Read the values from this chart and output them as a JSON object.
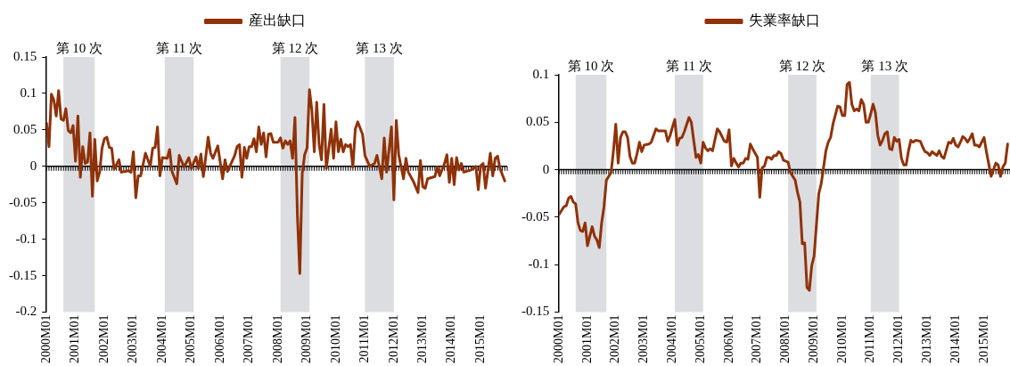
{
  "chart_data": [
    {
      "type": "line",
      "legend": "top",
      "marker": "none",
      "grid": false,
      "series": [
        {
          "name": "産出缺口",
          "color": "#8f3208",
          "x": [
            "2000-01",
            "2000-02",
            "2000-03",
            "2000-04",
            "2000-05",
            "2000-06",
            "2000-07",
            "2000-08",
            "2000-09",
            "2000-10",
            "2000-11",
            "2000-12",
            "2001-01",
            "2001-02",
            "2001-03",
            "2001-04",
            "2001-05",
            "2001-06",
            "2001-07",
            "2001-08",
            "2001-09",
            "2001-10",
            "2001-11",
            "2001-12",
            "2002-01",
            "2002-02",
            "2002-03",
            "2002-04",
            "2002-05",
            "2002-07",
            "2002-08",
            "2002-11",
            "2002-12",
            "2003-01",
            "2003-02",
            "2003-03",
            "2003-04",
            "2003-06",
            "2003-08",
            "2003-09",
            "2003-10",
            "2003-11",
            "2003-12",
            "2004-01",
            "2004-03",
            "2004-04",
            "2004-05",
            "2004-07",
            "2004-08",
            "2004-10",
            "2004-12",
            "2005-01",
            "2005-03",
            "2005-04",
            "2005-05",
            "2005-06",
            "2005-08",
            "2005-09",
            "2005-10",
            "2005-12",
            "2006-02",
            "2006-03",
            "2006-04",
            "2006-07",
            "2006-08",
            "2006-09",
            "2006-10",
            "2006-11",
            "2006-12",
            "2007-01",
            "2007-02",
            "2007-03",
            "2007-04",
            "2007-05",
            "2007-06",
            "2007-07",
            "2007-08",
            "2007-09",
            "2007-10",
            "2007-11",
            "2008-01",
            "2008-02",
            "2008-03",
            "2008-04",
            "2008-05",
            "2008-06",
            "2008-07",
            "2008-08",
            "2008-09",
            "2008-10",
            "2008-11",
            "2008-12",
            "2009-01",
            "2009-02",
            "2009-03",
            "2009-04",
            "2009-05",
            "2009-06",
            "2009-07",
            "2009-08",
            "2009-09",
            "2009-11",
            "2009-12",
            "2010-01",
            "2010-02",
            "2010-03",
            "2010-04",
            "2010-05",
            "2010-06",
            "2010-07",
            "2010-08",
            "2010-09",
            "2010-10",
            "2010-12",
            "2011-01",
            "2011-03",
            "2011-05",
            "2011-06",
            "2011-08",
            "2011-09",
            "2011-10",
            "2011-12",
            "2012-01",
            "2012-02",
            "2012-03",
            "2012-05",
            "2012-06",
            "2012-07",
            "2012-09",
            "2012-11",
            "2012-12",
            "2013-01",
            "2013-02",
            "2013-03",
            "2013-06",
            "2013-07",
            "2013-08",
            "2013-10",
            "2013-11",
            "2013-12",
            "2014-01",
            "2014-02",
            "2014-03",
            "2014-04",
            "2014-05",
            "2014-06",
            "2014-09",
            "2014-11",
            "2014-12",
            "2015-01",
            "2015-02",
            "2015-03",
            "2015-05",
            "2015-06",
            "2015-07",
            "2015-08",
            "2015-09",
            "2015-11"
          ],
          "values": [
            0.059,
            0.027,
            0.099,
            0.091,
            0.069,
            0.104,
            0.065,
            0.063,
            0.079,
            0.049,
            0.046,
            0.056,
            0.007,
            0.069,
            -0.015,
            0.027,
            0.004,
            0.006,
            0.046,
            -0.041,
            0.037,
            -0.02,
            -0.008,
            0.025,
            0.038,
            0.04,
            0.026,
            0.025,
            -0.004,
            0.009,
            -0.008,
            -0.006,
            -0.008,
            0.02,
            -0.043,
            -0.013,
            -0.013,
            0.018,
            0,
            0.025,
            0.026,
            0.054,
            -0.013,
            0.012,
            0.011,
            0.023,
            -0.007,
            -0.024,
            0.015,
            -0.001,
            0.012,
            -0.003,
            0.013,
            -0.003,
            0.017,
            -0.014,
            0.04,
            0.018,
            0.011,
            0.028,
            -0.017,
            0.009,
            -0.007,
            0.015,
            0.027,
            0.03,
            -0.015,
            0.026,
            0.011,
            0.027,
            0.027,
            0.038,
            0.02,
            0.054,
            0.03,
            0.046,
            0.013,
            0.044,
            0.045,
            0.033,
            0.033,
            0.039,
            0.025,
            0.035,
            0.03,
            0.035,
            0.011,
            0.067,
            -0.067,
            -0.147,
            -0.01,
            0.016,
            0.025,
            0.105,
            0.077,
            0.02,
            0.088,
            0.03,
            0.009,
            0.085,
            -0.003,
            0.051,
            0.011,
            0.061,
            0.02,
            0.037,
            0.02,
            0.03,
            0.027,
            0.03,
            -0.001,
            0.051,
            0.061,
            0.044,
            0.015,
            0,
            0.004,
            0.015,
            -0.017,
            0.039,
            -0.008,
            0.054,
            -0.046,
            0.063,
            0.016,
            -0.017,
            0.011,
            -0.008,
            -0.02,
            -0.036,
            0.008,
            -0.028,
            -0.03,
            -0.017,
            -0.014,
            -0.001,
            -0.013,
            0.004,
            0.016,
            -0.022,
            0.011,
            -0.025,
            0.012,
            -0.005,
            0.004,
            -0.008,
            -0.005,
            0,
            -0.032,
            0.001,
            0.004,
            -0.03,
            0.018,
            -0.013,
            0.011,
            0.014,
            -0.003,
            -0.02
          ]
        }
      ],
      "xlim": [
        "2000-01",
        "2015-12"
      ],
      "xticks": [
        {
          "value": "2000-01",
          "label": "2000M01"
        },
        {
          "value": "2001-01",
          "label": "2001M01"
        },
        {
          "value": "2002-01",
          "label": "2002M01"
        },
        {
          "value": "2003-01",
          "label": "2003M01"
        },
        {
          "value": "2004-01",
          "label": "2004M01"
        },
        {
          "value": "2005-01",
          "label": "2005M01"
        },
        {
          "value": "2006-01",
          "label": "2006M01"
        },
        {
          "value": "2007-01",
          "label": "2007M01"
        },
        {
          "value": "2008-01",
          "label": "2008M01"
        },
        {
          "value": "2009-01",
          "label": "2009M01"
        },
        {
          "value": "2010-01",
          "label": "2010M01"
        },
        {
          "value": "2011-01",
          "label": "2011M01"
        },
        {
          "value": "2012-01",
          "label": "2012M01"
        },
        {
          "value": "2013-01",
          "label": "2013M01"
        },
        {
          "value": "2014-01",
          "label": "2014M01"
        },
        {
          "value": "2015-01",
          "label": "2015M01"
        }
      ],
      "ylim": [
        -0.2,
        0.15
      ],
      "yticks": [
        -0.2,
        -0.15,
        -0.1,
        -0.05,
        0,
        0.05,
        0.1,
        0.15
      ],
      "bands": [
        {
          "axis": "x",
          "from": "2000-08",
          "to": "2001-09",
          "label": "第 10 次",
          "color": "#dcdde0"
        },
        {
          "axis": "x",
          "from": "2004-02",
          "to": "2005-02",
          "label": "第 11 次",
          "color": "#dcdde0"
        },
        {
          "axis": "x",
          "from": "2008-02",
          "to": "2009-02",
          "label": "第 12 次",
          "color": "#dcdde0"
        },
        {
          "axis": "x",
          "from": "2011-01",
          "to": "2012-01",
          "label": "第 13 次",
          "color": "#dcdde0"
        }
      ],
      "ref_lines": [
        {
          "axis": "y",
          "value": 0,
          "color": "#000000"
        }
      ]
    },
    {
      "type": "line",
      "legend": "top",
      "marker": "none",
      "grid": false,
      "series": [
        {
          "name": "失業率缺口",
          "color": "#8f3208",
          "x": [
            "2000-01",
            "2000-02",
            "2000-03",
            "2000-04",
            "2000-05",
            "2000-06",
            "2000-07",
            "2000-08",
            "2000-09",
            "2000-10",
            "2000-11",
            "2000-12",
            "2001-01",
            "2001-03",
            "2001-04",
            "2001-05",
            "2001-06",
            "2001-07",
            "2001-08",
            "2001-09",
            "2001-11",
            "2001-12",
            "2002-01",
            "2002-02",
            "2002-03",
            "2002-04",
            "2002-05",
            "2002-06",
            "2002-07",
            "2002-08",
            "2002-09",
            "2002-10",
            "2002-11",
            "2002-12",
            "2003-01",
            "2003-03",
            "2003-04",
            "2003-05",
            "2003-06",
            "2003-07",
            "2003-08",
            "2003-10",
            "2003-11",
            "2003-12",
            "2004-01",
            "2004-02",
            "2004-03",
            "2004-04",
            "2004-05",
            "2004-06",
            "2004-08",
            "2004-09",
            "2004-10",
            "2004-11",
            "2004-12",
            "2005-01",
            "2005-02",
            "2005-03",
            "2005-04",
            "2005-05",
            "2005-06",
            "2005-08",
            "2005-09",
            "2005-11",
            "2005-12",
            "2006-01",
            "2006-02",
            "2006-03",
            "2006-04",
            "2006-05",
            "2006-06",
            "2006-07",
            "2006-08",
            "2006-09",
            "2006-10",
            "2006-11",
            "2007-01",
            "2007-02",
            "2007-03",
            "2007-04",
            "2007-05",
            "2007-06",
            "2007-07",
            "2007-08",
            "2007-09",
            "2007-10",
            "2007-11",
            "2007-12",
            "2008-02",
            "2008-03",
            "2008-05",
            "2008-06",
            "2008-07",
            "2008-08",
            "2008-09",
            "2008-10",
            "2008-11",
            "2008-12",
            "2009-01",
            "2009-02",
            "2009-03",
            "2009-04",
            "2009-05",
            "2009-06",
            "2009-07",
            "2009-08",
            "2009-09",
            "2009-11",
            "2009-12",
            "2010-01",
            "2010-02",
            "2010-03",
            "2010-04",
            "2010-05",
            "2010-06",
            "2010-07",
            "2010-08",
            "2010-09",
            "2010-10",
            "2010-11",
            "2010-12",
            "2011-01",
            "2011-02",
            "2011-03",
            "2011-04",
            "2011-05",
            "2011-06",
            "2011-07",
            "2011-08",
            "2011-09",
            "2011-10",
            "2011-11",
            "2011-12",
            "2012-01",
            "2012-02",
            "2012-03",
            "2012-04",
            "2012-05",
            "2012-06",
            "2012-07",
            "2012-08",
            "2012-10",
            "2012-11",
            "2012-12",
            "2013-01",
            "2013-02",
            "2013-03",
            "2013-04",
            "2013-05",
            "2013-06",
            "2013-07",
            "2013-08",
            "2013-10",
            "2013-11",
            "2013-12",
            "2014-01",
            "2014-02",
            "2014-03",
            "2014-04",
            "2014-05",
            "2014-06",
            "2014-07",
            "2014-08",
            "2014-09",
            "2014-10",
            "2014-11",
            "2014-12",
            "2015-01",
            "2015-02",
            "2015-04",
            "2015-05",
            "2015-06",
            "2015-07",
            "2015-08",
            "2015-09",
            "2015-10",
            "2015-11"
          ],
          "values": [
            -0.047,
            -0.043,
            -0.039,
            -0.038,
            -0.03,
            -0.028,
            -0.034,
            -0.036,
            -0.056,
            -0.064,
            -0.065,
            -0.056,
            -0.08,
            -0.06,
            -0.07,
            -0.074,
            -0.082,
            -0.056,
            -0.039,
            -0.011,
            -0.003,
            0.02,
            0.048,
            0.007,
            0.034,
            0.04,
            0.04,
            0.034,
            0.014,
            0.007,
            0.007,
            0.017,
            0.029,
            0.019,
            0.026,
            0.027,
            0.029,
            0.036,
            0.043,
            0.041,
            0.041,
            0.041,
            0.03,
            0.036,
            0.045,
            0.053,
            0.026,
            0.033,
            0.034,
            0.04,
            0.055,
            0.05,
            0.031,
            0.013,
            0.016,
            0.007,
            0.029,
            0.023,
            0.02,
            0.022,
            0.02,
            0.043,
            0.04,
            0.03,
            0.029,
            0.042,
            0.004,
            0.012,
            0.007,
            0.003,
            0.007,
            0.007,
            0.012,
            0.011,
            0.027,
            0.022,
            0.013,
            -0.029,
            0.002,
            0.004,
            0.013,
            0.013,
            0.011,
            0.015,
            0.015,
            0.019,
            0.017,
            0.01,
            0.008,
            -0.003,
            -0.011,
            -0.024,
            -0.034,
            -0.078,
            -0.077,
            -0.124,
            -0.127,
            -0.101,
            -0.091,
            -0.058,
            -0.025,
            -0.015,
            0.002,
            0.02,
            0.029,
            0.034,
            0.048,
            0.067,
            0.066,
            0.057,
            0.057,
            0.09,
            0.092,
            0.069,
            0.062,
            0.064,
            0.062,
            0.074,
            0.069,
            0.05,
            0.05,
            0.059,
            0.069,
            0.06,
            0.036,
            0.026,
            0.031,
            0.038,
            0.04,
            0.022,
            0.021,
            0.034,
            0.03,
            0.032,
            0.012,
            0.005,
            0.005,
            0.02,
            0.031,
            0.029,
            0.031,
            0.03,
            0.024,
            0.019,
            0.018,
            0.015,
            0.019,
            0.017,
            0.015,
            0.02,
            0.014,
            0.012,
            0.029,
            0.028,
            0.033,
            0.026,
            0.024,
            0.029,
            0.035,
            0.033,
            0.029,
            0.033,
            0.038,
            0.026,
            0.026,
            0.024,
            0.029,
            0.034,
            0.019,
            -0.007,
            0,
            0.007,
            0.005,
            -0.007,
            0.003,
            0.007,
            0.027
          ]
        }
      ],
      "xlim": [
        "2000-01",
        "2015-12"
      ],
      "xticks": [
        {
          "value": "2000-01",
          "label": "2000M01"
        },
        {
          "value": "2001-01",
          "label": "2001M01"
        },
        {
          "value": "2002-01",
          "label": "2002M01"
        },
        {
          "value": "2003-01",
          "label": "2003M01"
        },
        {
          "value": "2004-01",
          "label": "2004M01"
        },
        {
          "value": "2005-01",
          "label": "2005M01"
        },
        {
          "value": "2006-01",
          "label": "2006M01"
        },
        {
          "value": "2007-01",
          "label": "2007M01"
        },
        {
          "value": "2008-01",
          "label": "2008M01"
        },
        {
          "value": "2009-01",
          "label": "2009M01"
        },
        {
          "value": "2010-01",
          "label": "2010M01"
        },
        {
          "value": "2011-01",
          "label": "2011M01"
        },
        {
          "value": "2012-01",
          "label": "2012M01"
        },
        {
          "value": "2013-01",
          "label": "2013M01"
        },
        {
          "value": "2014-01",
          "label": "2014M01"
        },
        {
          "value": "2015-01",
          "label": "2015M01"
        }
      ],
      "ylim": [
        -0.15,
        0.1
      ],
      "yticks": [
        -0.15,
        -0.1,
        -0.05,
        0,
        0.05,
        0.1
      ],
      "bands": [
        {
          "axis": "x",
          "from": "2000-08",
          "to": "2001-09",
          "label": "第 10 次",
          "color": "#dcdde0"
        },
        {
          "axis": "x",
          "from": "2004-02",
          "to": "2005-02",
          "label": "第 11 次",
          "color": "#dcdde0"
        },
        {
          "axis": "x",
          "from": "2008-02",
          "to": "2009-02",
          "label": "第 12 次",
          "color": "#dcdde0"
        },
        {
          "axis": "x",
          "from": "2011-01",
          "to": "2012-01",
          "label": "第 13 次",
          "color": "#dcdde0"
        }
      ],
      "ref_lines": [
        {
          "axis": "y",
          "value": 0,
          "color": "#000000"
        }
      ]
    }
  ]
}
